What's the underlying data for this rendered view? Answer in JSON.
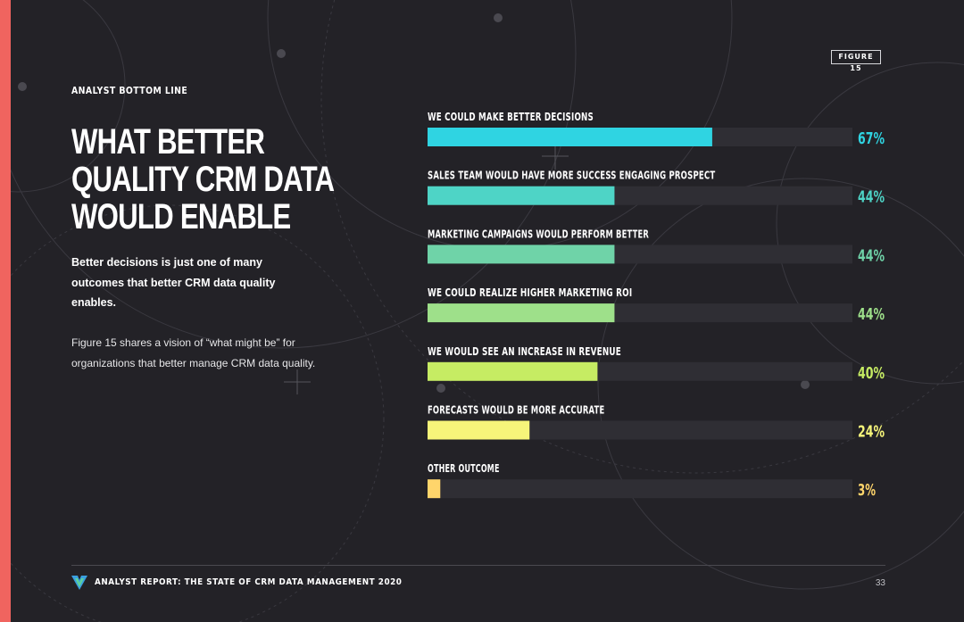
{
  "page": {
    "eyebrow": "ANALYST BOTTOM LINE",
    "title_lines": [
      "WHAT BETTER",
      "QUALITY CRM DATA",
      "WOULD ENABLE"
    ],
    "lead_text": "Better decisions is just one of many outcomes that better CRM data quality enables.",
    "body_text": "Figure 15 shares a vision of “what might be” for organizations that better manage CRM data quality.",
    "figure_tag": "FIGURE 15",
    "footer_text": "ANALYST REPORT: THE STATE OF CRM DATA MANAGEMENT 2020",
    "page_number": "33"
  },
  "colors": {
    "background": "#232227",
    "accent": "#f0645f",
    "track": "#2f2e34",
    "logo_blue": "#3aa0e0",
    "logo_green": "#5ed29a"
  },
  "chart_data": {
    "type": "bar",
    "orientation": "horizontal",
    "categories": [
      "WE COULD MAKE BETTER DECISIONS",
      "SALES TEAM WOULD HAVE MORE SUCCESS ENGAGING PROSPECT",
      "MARKETING CAMPAIGNS WOULD PERFORM BETTER",
      "WE COULD REALIZE HIGHER MARKETING ROI",
      "WE WOULD SEE AN INCREASE IN REVENUE",
      "FORECASTS WOULD BE MORE ACCURATE",
      "OTHER OUTCOME"
    ],
    "values": [
      67,
      44,
      44,
      44,
      40,
      24,
      3
    ],
    "value_labels": [
      "67%",
      "44%",
      "44%",
      "44%",
      "40%",
      "24%",
      "3%"
    ],
    "bar_colors": [
      "#2fd4e2",
      "#4ed4c6",
      "#6fd3a8",
      "#9ee08a",
      "#c6ec63",
      "#f6f57a",
      "#ffd56b"
    ],
    "xlim": [
      0,
      100
    ],
    "grid": false,
    "legend": "none"
  }
}
